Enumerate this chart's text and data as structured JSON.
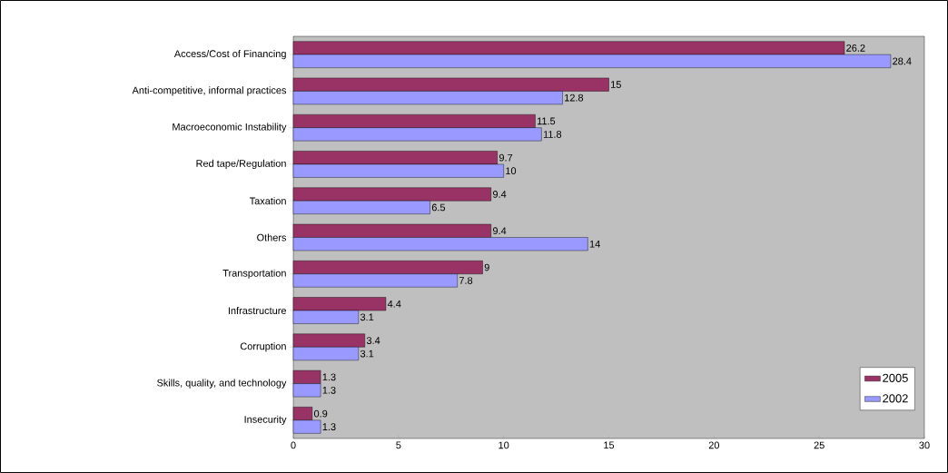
{
  "chart_data": {
    "type": "bar",
    "orientation": "horizontal",
    "categories": [
      "Access/Cost of Financing",
      "Anti-competitive, informal practices",
      "Macroeconomic Instability",
      "Red tape/Regulation",
      "Taxation",
      "Others",
      "Transportation",
      "Infrastructure",
      "Corruption",
      "Skills, quality, and technology",
      "Insecurity"
    ],
    "series": [
      {
        "name": "2005",
        "color": "#993366",
        "values": [
          26.2,
          15,
          11.5,
          9.7,
          9.4,
          9.4,
          9,
          4.4,
          3.4,
          1.3,
          0.9
        ]
      },
      {
        "name": "2002",
        "color": "#9999ff",
        "values": [
          28.4,
          12.8,
          11.8,
          10,
          6.5,
          14,
          7.8,
          3.1,
          3.1,
          1.3,
          1.3
        ]
      }
    ],
    "xlim": [
      0,
      30
    ],
    "xticks": [
      0,
      5,
      10,
      15,
      20,
      25,
      30
    ],
    "data_labels": true,
    "legend": "bottom right",
    "grid": false
  }
}
